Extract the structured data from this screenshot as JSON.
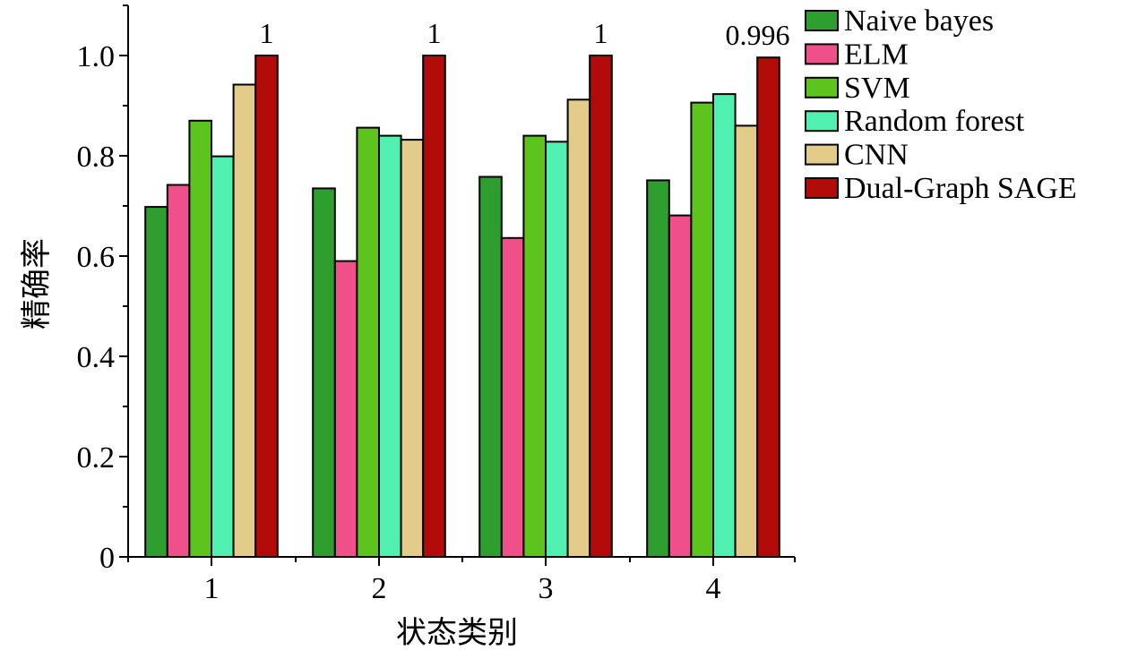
{
  "chart_data": {
    "type": "bar",
    "title": "",
    "xlabel": "状态类别",
    "ylabel": "精确率",
    "categories": [
      "1",
      "2",
      "3",
      "4"
    ],
    "ylim": [
      0,
      1.1
    ],
    "yticks": [
      {
        "value": 0,
        "label": "0"
      },
      {
        "value": 0.2,
        "label": "0.2"
      },
      {
        "value": 0.4,
        "label": "0.4"
      },
      {
        "value": 0.6,
        "label": "0.6"
      },
      {
        "value": 0.8,
        "label": "0.8"
      },
      {
        "value": 1.0,
        "label": "1.0"
      }
    ],
    "grid": false,
    "legend_position": "right",
    "series": [
      {
        "name": "Naive bayes",
        "color": "#2e9e2e",
        "values": [
          0.698,
          0.735,
          0.758,
          0.751
        ]
      },
      {
        "name": "ELM",
        "color": "#f0508a",
        "values": [
          0.742,
          0.59,
          0.636,
          0.681
        ]
      },
      {
        "name": "SVM",
        "color": "#5cc41c",
        "values": [
          0.87,
          0.856,
          0.84,
          0.906
        ]
      },
      {
        "name": "Random forest",
        "color": "#4ff0b0",
        "values": [
          0.799,
          0.84,
          0.828,
          0.923
        ]
      },
      {
        "name": "CNN",
        "color": "#e3cb8a",
        "values": [
          0.942,
          0.832,
          0.912,
          0.86
        ]
      },
      {
        "name": "Dual-Graph SAGE",
        "color": "#b30a0a",
        "values": [
          1.0,
          1.0,
          1.0,
          0.996
        ]
      }
    ],
    "annotations": [
      {
        "category": "1",
        "series": "Dual-Graph SAGE",
        "text": "1"
      },
      {
        "category": "2",
        "series": "Dual-Graph SAGE",
        "text": "1"
      },
      {
        "category": "3",
        "series": "Dual-Graph SAGE",
        "text": "1"
      },
      {
        "category": "4",
        "series": "Dual-Graph SAGE",
        "text": "0.996"
      }
    ]
  }
}
